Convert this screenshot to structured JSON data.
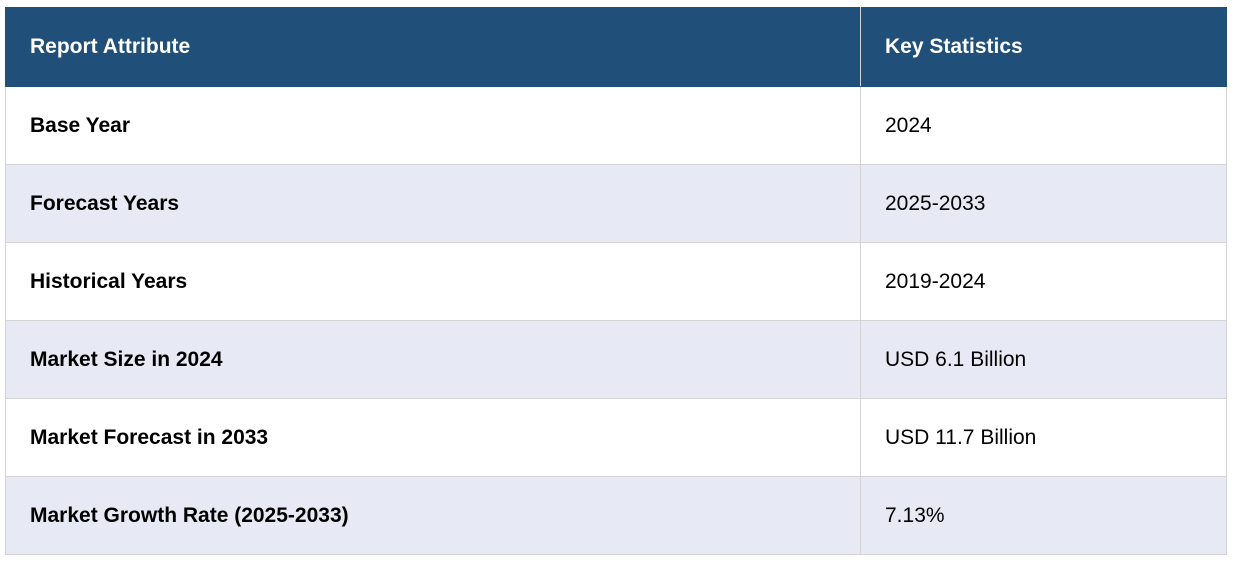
{
  "table": {
    "header": [
      "Report Attribute",
      "Key Statistics"
    ],
    "rows": [
      [
        "Base Year",
        "2024"
      ],
      [
        "Forecast Years",
        "2025-2033"
      ],
      [
        "Historical Years",
        "2019-2024"
      ],
      [
        "Market Size in 2024",
        "USD 6.1 Billion"
      ],
      [
        "Market Forecast in 2033",
        "USD 11.7 Billion"
      ],
      [
        "Market Growth Rate (2025-2033)",
        "7.13%"
      ]
    ]
  }
}
